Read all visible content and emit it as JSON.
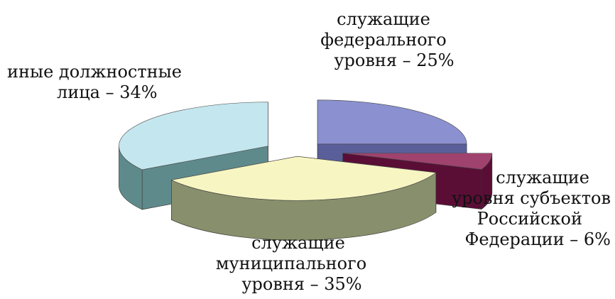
{
  "chart_data": {
    "type": "pie",
    "style": "3d-exploded",
    "title": "",
    "legend": "none",
    "slices": [
      {
        "label_lines": [
          "служащие",
          "федерального",
          "уровня – 25%"
        ],
        "value": 25,
        "color_top": "#8b91d0",
        "color_side": "#5a5f9a"
      },
      {
        "label_lines": [
          "служащие",
          "уровня субъектов",
          "Российской",
          "Федерации – 6%"
        ],
        "value": 6,
        "color_top": "#a0426e",
        "color_side": "#5a0e36"
      },
      {
        "label_lines": [
          "служащие",
          "муниципального",
          "уровня – 35%"
        ],
        "value": 35,
        "color_top": "#f7f5c2",
        "color_side": "#878f6c"
      },
      {
        "label_lines": [
          "иные должностные",
          "лица – 34%"
        ],
        "value": 34,
        "color_top": "#c4e6ee",
        "color_side": "#5f8a8c"
      }
    ]
  }
}
